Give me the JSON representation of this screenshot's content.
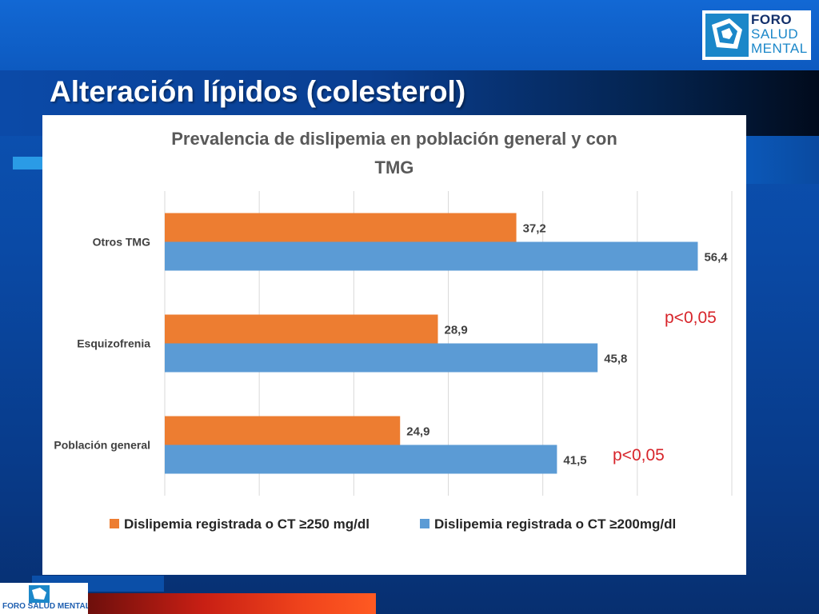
{
  "slide": {
    "title": "Alteración lípidos (colesterol)",
    "logo": {
      "line1": "FORO",
      "line2": "SALUD",
      "line3": "MENTAL"
    },
    "bottom_logo": {
      "text": "FORO SALUD MENTAL"
    },
    "annotations": [
      {
        "text": "p<0,05"
      },
      {
        "text": "p<0,05"
      }
    ]
  },
  "chart_data": {
    "type": "bar",
    "orientation": "horizontal",
    "title": "Prevalencia de dislipemia en población general y con TMG",
    "title_lines": [
      "Prevalencia de dislipemia en población general y con",
      "TMG"
    ],
    "categories": [
      "Otros TMG",
      "Esquizofrenia",
      "Población general"
    ],
    "series": [
      {
        "name": "Dislipemia registrada o  CT ≥250 mg/dl",
        "color": "#ed7d31",
        "values": [
          37.2,
          28.9,
          24.9
        ],
        "labels": [
          "37,2",
          "28,9",
          "24,9"
        ]
      },
      {
        "name": "Dislipemia registrada o  CT ≥200mg/dl",
        "color": "#5b9bd5",
        "values": [
          56.4,
          45.8,
          41.5
        ],
        "labels": [
          "56,4",
          "45,8",
          "41,5"
        ]
      }
    ],
    "xlim": [
      0,
      60
    ],
    "grid": true,
    "legend": "bottom"
  },
  "colors": {
    "accent": "#0b56b8",
    "annotation": "#d7242a"
  }
}
